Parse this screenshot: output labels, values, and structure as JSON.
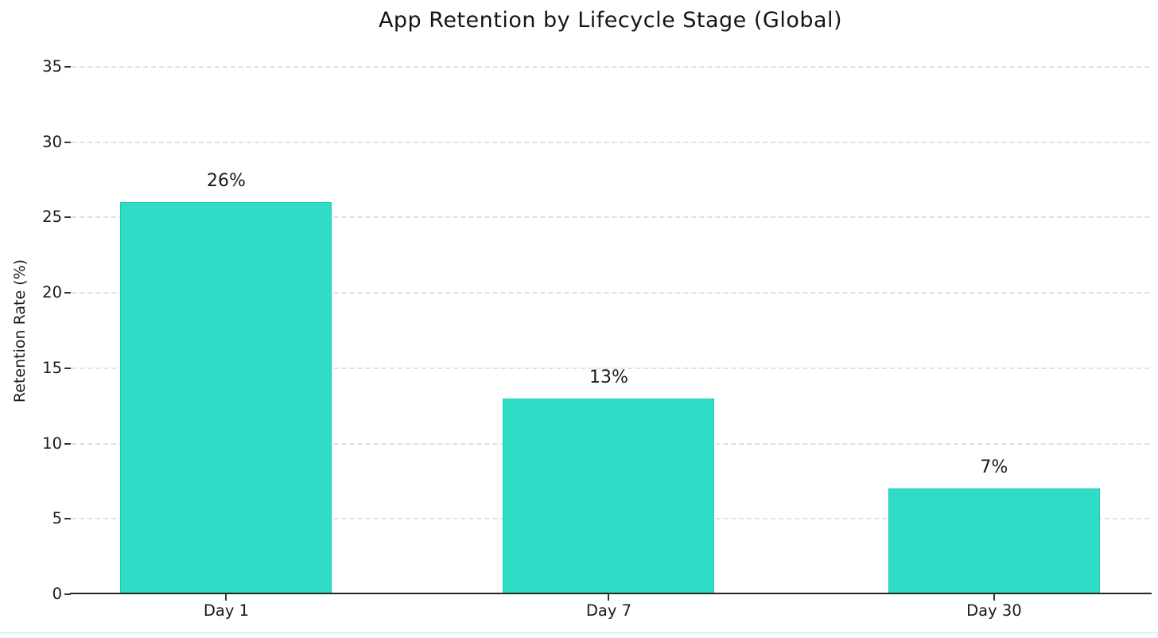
{
  "chart_data": {
    "type": "bar",
    "title": "App Retention by Lifecycle Stage (Global)",
    "categories": [
      "Day 1",
      "Day 7",
      "Day 30"
    ],
    "values": [
      26,
      13,
      7
    ],
    "value_labels": [
      "26%",
      "13%",
      "7%"
    ],
    "xlabel": "",
    "ylabel": "Retention Rate (%)",
    "ylim": [
      0,
      35
    ],
    "yticks": [
      0,
      5,
      10,
      15,
      20,
      25,
      30,
      35
    ],
    "ytick_labels": [
      "0",
      "5",
      "10",
      "15",
      "20",
      "25",
      "30",
      "35"
    ],
    "legend": "none",
    "grid": true,
    "gridline_style": "dashed",
    "gridline_color": "#dadada",
    "bar_color": "#2fdcc6",
    "bar_edge_color": "#1ecbb5",
    "axis_color": "#262626",
    "text_color": "#1a1a1a",
    "background_color": "#ffffff"
  }
}
